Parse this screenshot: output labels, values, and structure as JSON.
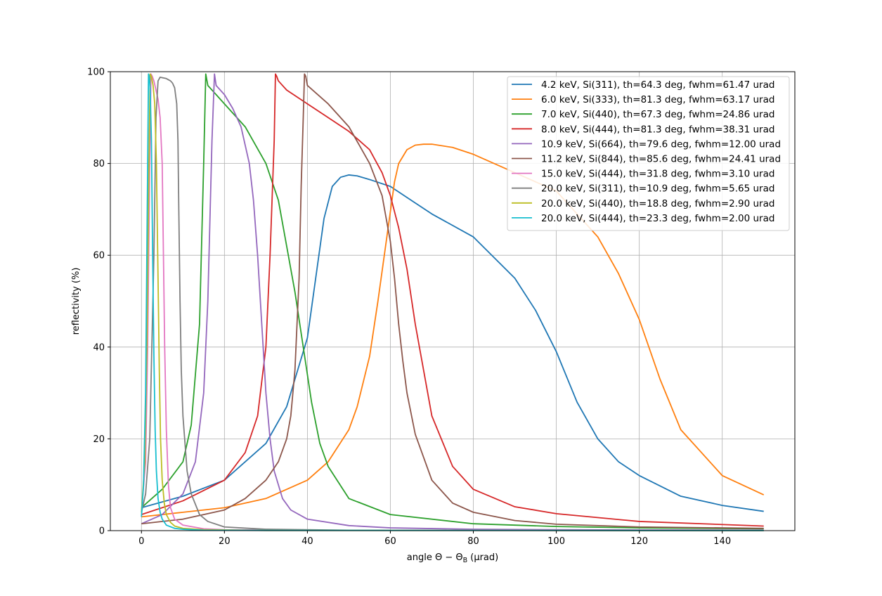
{
  "chart_data": {
    "type": "line",
    "title": "",
    "xlabel": "angle Θ − Θ",
    "xlabel_sub": "B",
    "xlabel_unit": " (μrad)",
    "ylabel": "reflectivity (%)",
    "xlim": [
      -7.5,
      157.5
    ],
    "ylim": [
      0,
      100
    ],
    "xticks": [
      "0",
      "20",
      "40",
      "60",
      "80",
      "100",
      "120",
      "140"
    ],
    "xtick_values": [
      0,
      20,
      40,
      60,
      80,
      100,
      120,
      140
    ],
    "yticks": [
      "0",
      "20",
      "40",
      "60",
      "80",
      "100"
    ],
    "ytick_values": [
      0,
      20,
      40,
      60,
      80,
      100
    ],
    "grid": true,
    "legend_position": "top-right",
    "series": [
      {
        "name": " 4.2 keV, Si(311), th=64.3 deg, fwhm=61.47 urad",
        "color": "#1f77b4",
        "x": [
          0,
          10,
          20,
          30,
          35,
          40,
          42,
          44,
          46,
          48,
          50,
          52,
          55,
          60,
          65,
          70,
          80,
          90,
          95,
          100,
          105,
          110,
          115,
          120,
          130,
          140,
          150
        ],
        "y": [
          5,
          7.5,
          11,
          19,
          27,
          42,
          55,
          68,
          75,
          77,
          77.5,
          77.3,
          76.5,
          75,
          72,
          69,
          64,
          55,
          48,
          39,
          28,
          20,
          15,
          12,
          7.5,
          5.5,
          4.2
        ]
      },
      {
        "name": " 6.0 keV, Si(333), th=81.3 deg, fwhm=63.17 urad",
        "color": "#ff7f0e",
        "x": [
          0,
          10,
          20,
          30,
          40,
          45,
          50,
          52,
          55,
          57,
          59,
          61,
          62,
          64,
          66,
          68,
          70,
          75,
          80,
          90,
          100,
          110,
          115,
          120,
          125,
          130,
          140,
          150
        ],
        "y": [
          3,
          4,
          5,
          7,
          11,
          15,
          22,
          27,
          38,
          50,
          63,
          76,
          80,
          83,
          84,
          84.2,
          84.2,
          83.5,
          82,
          78,
          74,
          64,
          56,
          46,
          33,
          22,
          12,
          7.8
        ]
      },
      {
        "name": " 7.0 keV, Si(440), th=67.3 deg, fwhm=24.86 urad",
        "color": "#2ca02c",
        "x": [
          0,
          5,
          10,
          12,
          14,
          15,
          15.5,
          16,
          18,
          20,
          25,
          30,
          33,
          35,
          37,
          39,
          41,
          43,
          45,
          50,
          60,
          80,
          100,
          120,
          150
        ],
        "y": [
          5,
          9,
          15,
          23,
          45,
          80,
          99.5,
          97,
          95,
          93,
          88,
          80,
          72,
          62,
          52,
          40,
          28,
          19,
          14,
          7,
          3.5,
          1.5,
          0.9,
          0.6,
          0.4
        ]
      },
      {
        "name": " 8.0 keV, Si(444), th=81.3 deg, fwhm=38.31 urad",
        "color": "#d62728",
        "x": [
          0,
          10,
          20,
          25,
          28,
          30,
          31,
          32,
          32.3,
          32.6,
          33,
          35,
          40,
          45,
          50,
          55,
          58,
          60,
          62,
          64,
          66,
          68,
          70,
          75,
          80,
          90,
          100,
          120,
          150
        ],
        "y": [
          3.5,
          6.5,
          11,
          17,
          25,
          40,
          60,
          85,
          99.5,
          99,
          98,
          96,
          93,
          90,
          87,
          83,
          78,
          73,
          66,
          57,
          45,
          35,
          25,
          14,
          9,
          5.2,
          3.7,
          2,
          1
        ]
      },
      {
        "name": "10.9 keV, Si(664), th=79.6 deg, fwhm=12.00 urad",
        "color": "#9467bd",
        "x": [
          0,
          5,
          10,
          13,
          15,
          16,
          17,
          17.6,
          18,
          20,
          22,
          24,
          26,
          27,
          28,
          29,
          30,
          31,
          32,
          34,
          36,
          40,
          50,
          60,
          80,
          100,
          150
        ],
        "y": [
          1.5,
          3.5,
          8,
          15,
          30,
          50,
          85,
          99.5,
          97,
          95,
          92,
          88,
          80,
          72,
          60,
          45,
          30,
          20,
          13,
          7,
          4.5,
          2.5,
          1.1,
          0.6,
          0.3,
          0.2,
          0.1
        ]
      },
      {
        "name": "11.2 keV, Si(844), th=85.6 deg, fwhm=24.41 urad",
        "color": "#8c564b",
        "x": [
          0,
          10,
          20,
          25,
          30,
          33,
          35,
          36,
          37,
          38,
          38.5,
          39,
          39.3,
          39.6,
          40,
          45,
          50,
          55,
          58,
          60,
          61,
          62,
          63,
          64,
          66,
          70,
          75,
          80,
          90,
          100,
          120,
          150
        ],
        "y": [
          1.5,
          2.5,
          4.5,
          7,
          11,
          15,
          20,
          25,
          35,
          55,
          75,
          90,
          99.5,
          99,
          97,
          93,
          88,
          80,
          73,
          63,
          55,
          45,
          37,
          30,
          21,
          11,
          6,
          4,
          2.2,
          1.4,
          0.8,
          0.5
        ]
      },
      {
        "name": "15.0 keV, Si(444), th=31.8 deg, fwhm=3.10 urad",
        "color": "#e377c2",
        "x": [
          0,
          1,
          1.5,
          2,
          2.3,
          2.6,
          3,
          3.5,
          4,
          4.5,
          5,
          5.3,
          5.6,
          6,
          6.5,
          7,
          8,
          10,
          15,
          20,
          40,
          80,
          150
        ],
        "y": [
          4,
          15,
          40,
          80,
          99.5,
          99,
          98,
          96,
          94,
          90,
          80,
          60,
          40,
          22,
          10,
          5,
          2.5,
          1.2,
          0.4,
          0.2,
          0.1,
          0.05,
          0.02
        ]
      },
      {
        "name": "20.0 keV, Si(311), th=10.9 deg, fwhm=5.65 urad",
        "color": "#7f7f7f",
        "x": [
          0,
          1,
          2,
          3,
          3.5,
          4,
          4.5,
          5,
          6,
          7,
          7.5,
          8,
          8.5,
          8.8,
          9,
          9.3,
          9.6,
          10,
          11,
          12,
          14,
          16,
          20,
          30,
          50,
          100,
          150
        ],
        "y": [
          4,
          8,
          20,
          60,
          90,
          98,
          98.8,
          98.7,
          98.5,
          98,
          97.5,
          96.5,
          93,
          85,
          70,
          50,
          35,
          25,
          13,
          8,
          3.5,
          2,
          0.8,
          0.3,
          0.1,
          0.05,
          0.02
        ]
      },
      {
        "name": "20.0 keV, Si(440), th=18.8 deg, fwhm=2.90 urad",
        "color": "#bcbd22",
        "x": [
          0,
          0.8,
          1.3,
          1.8,
          2.1,
          2.4,
          2.8,
          3.2,
          3.6,
          4,
          4.3,
          4.6,
          5,
          5.5,
          6,
          7,
          8,
          10,
          15,
          30,
          150
        ],
        "y": [
          4,
          15,
          40,
          80,
          99.5,
          99,
          97,
          93,
          80,
          55,
          35,
          20,
          11,
          6,
          3.5,
          1.8,
          1,
          0.5,
          0.2,
          0.05,
          0.02
        ]
      },
      {
        "name": "20.0 keV, Si(444), th=23.3 deg, fwhm=2.00 urad",
        "color": "#17becf",
        "x": [
          0,
          0.5,
          1,
          1.4,
          1.7,
          1.9,
          2.1,
          2.4,
          2.7,
          3,
          3.3,
          3.6,
          4,
          4.5,
          5,
          6,
          8,
          10,
          15,
          30,
          150
        ],
        "y": [
          3,
          10,
          30,
          70,
          99.5,
          99,
          96,
          85,
          60,
          38,
          22,
          13,
          7,
          4,
          2.5,
          1.2,
          0.5,
          0.3,
          0.1,
          0.05,
          0.02
        ]
      }
    ]
  }
}
